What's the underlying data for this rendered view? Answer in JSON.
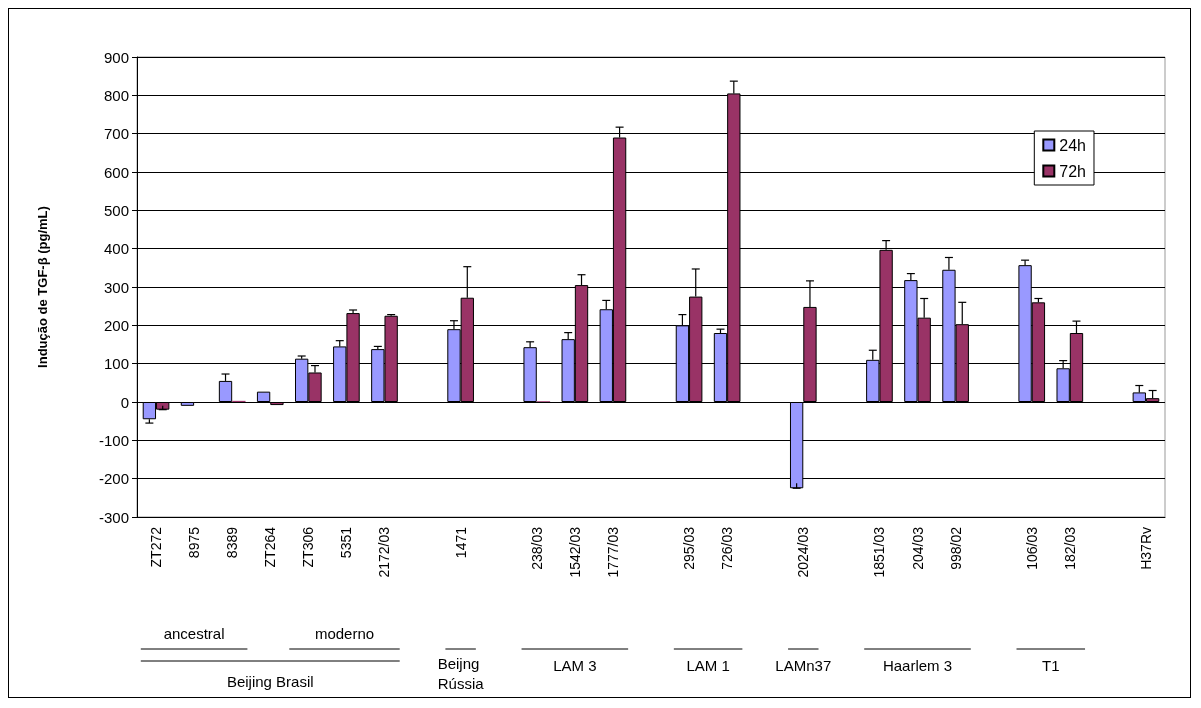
{
  "chart_data": {
    "type": "bar",
    "ylabel": "Indução de TGF-β (pg/mL)",
    "categories": [
      "ZT272",
      "8975",
      "8389",
      "ZT264",
      "ZT306",
      "5351",
      "2172/03",
      null,
      "1471",
      null,
      "238/03",
      "1542/03",
      "1777/03",
      null,
      "295/03",
      "726/03",
      null,
      "2024/03",
      null,
      "1851/03",
      "204/03",
      "998/02",
      null,
      "106/03",
      "182/03",
      null,
      "H37Rv"
    ],
    "series": [
      {
        "name": "24h",
        "color": "#9999ff",
        "values": [
          -45,
          -10,
          55,
          27,
          113,
          145,
          138,
          null,
          190,
          null,
          143,
          164,
          242,
          null,
          200,
          180,
          null,
          -225,
          null,
          110,
          318,
          345,
          null,
          357,
          88,
          null,
          25
        ],
        "errors": [
          [
            -55,
            -45
          ],
          null,
          [
            55,
            73
          ],
          null,
          [
            113,
            120
          ],
          [
            145,
            160
          ],
          [
            138,
            145
          ],
          null,
          [
            190,
            212
          ],
          null,
          [
            143,
            157
          ],
          [
            164,
            181
          ],
          [
            242,
            265
          ],
          null,
          [
            200,
            228
          ],
          [
            180,
            190
          ],
          null,
          [
            -225,
            -212
          ],
          null,
          [
            110,
            135
          ],
          [
            318,
            335
          ],
          [
            345,
            377
          ],
          null,
          [
            357,
            370
          ],
          [
            88,
            108
          ],
          null,
          [
            25,
            43
          ]
        ]
      },
      {
        "name": "72h",
        "color": "#993366",
        "values": [
          -20,
          null,
          3,
          -8,
          77,
          232,
          225,
          null,
          272,
          null,
          2,
          305,
          690,
          null,
          275,
          805,
          null,
          248,
          null,
          397,
          220,
          203,
          null,
          260,
          180,
          null,
          10
        ],
        "errors": [
          [
            -20,
            -10
          ],
          null,
          null,
          null,
          [
            77,
            95
          ],
          [
            232,
            240
          ],
          [
            225,
            228
          ],
          null,
          [
            272,
            353
          ],
          null,
          null,
          [
            305,
            332
          ],
          [
            690,
            717
          ],
          null,
          [
            275,
            347
          ],
          [
            805,
            837
          ],
          null,
          [
            248,
            316
          ],
          null,
          [
            397,
            421
          ],
          [
            220,
            270
          ],
          [
            203,
            260
          ],
          null,
          [
            260,
            270
          ],
          [
            180,
            211
          ],
          null,
          [
            10,
            30
          ]
        ]
      }
    ],
    "ylim": [
      -300,
      900
    ],
    "yticks": [
      -300,
      -200,
      -100,
      0,
      100,
      200,
      300,
      400,
      500,
      600,
      700,
      800,
      900
    ],
    "grid": "y",
    "legend": "top right",
    "annotations": [
      "ancestral",
      "moderno",
      "Beijing Brasil",
      "Beijng Rússia",
      "LAM 3",
      "LAM 1",
      "LAMn37",
      "Haarlem 3",
      "T1"
    ]
  }
}
